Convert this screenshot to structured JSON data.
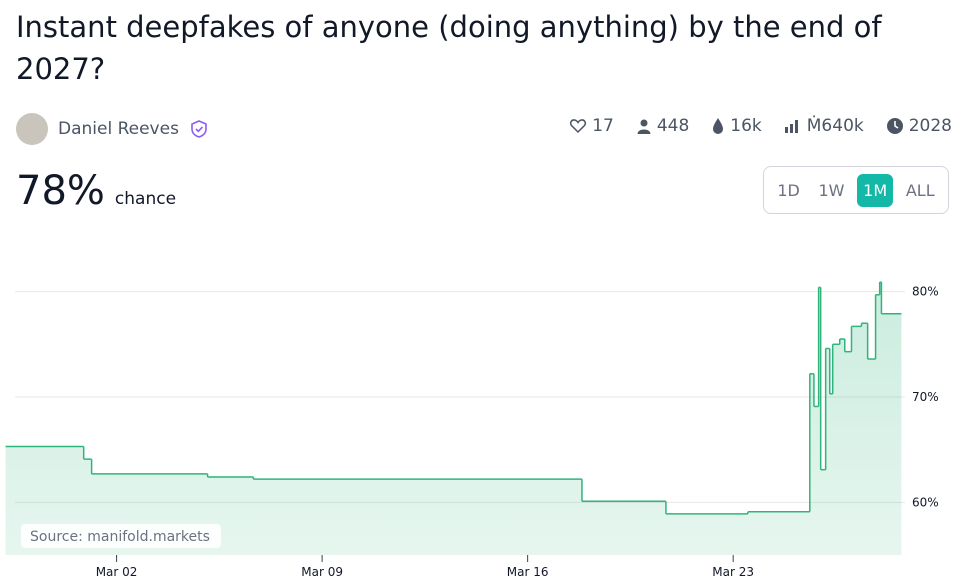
{
  "header": {
    "title": "Instant deepfakes of anyone (doing anything) by the end of 2027?",
    "author": "Daniel Reeves"
  },
  "stats": [
    "17",
    "448",
    "16k",
    "Ṁ640k",
    "2028"
  ],
  "probability": {
    "value": "78%",
    "label": "chance"
  },
  "time_buttons": {
    "options": [
      "1D",
      "1W",
      "1M",
      "ALL"
    ],
    "selected": 2
  },
  "chart_data": {
    "type": "step",
    "source": "Source: manifold.markets",
    "x": [
      -1.78,
      0.88,
      1.15,
      5.1,
      6.66,
      17.85,
      20.71,
      23.5,
      25.61,
      25.75,
      25.91,
      25.98,
      26.15,
      26.29,
      26.39,
      26.63,
      26.8,
      27.03,
      27.37,
      27.58,
      27.85,
      27.99,
      28.05,
      28.73
    ],
    "values": [
      65.3,
      64.1,
      62.7,
      62.4,
      62.2,
      60.1,
      58.9,
      59.1,
      72.2,
      69.1,
      80.4,
      63.1,
      74.6,
      70.3,
      75.0,
      75.5,
      74.3,
      76.7,
      77.0,
      73.6,
      79.7,
      80.9,
      77.9,
      77.9
    ],
    "color": "#2fb47c",
    "xlim": [
      -1.8,
      28.75
    ],
    "ylim": [
      55,
      83
    ],
    "xticks": [
      {
        "value": 2,
        "label": "Mar 02"
      },
      {
        "value": 9,
        "label": "Mar 09"
      },
      {
        "value": 16,
        "label": "Mar 16"
      },
      {
        "value": 23,
        "label": "Mar 23"
      }
    ],
    "yticks": [
      {
        "value": 60,
        "label": "60%"
      },
      {
        "value": 70,
        "label": "70%"
      },
      {
        "value": 80,
        "label": "80%"
      }
    ],
    "grid": true
  }
}
